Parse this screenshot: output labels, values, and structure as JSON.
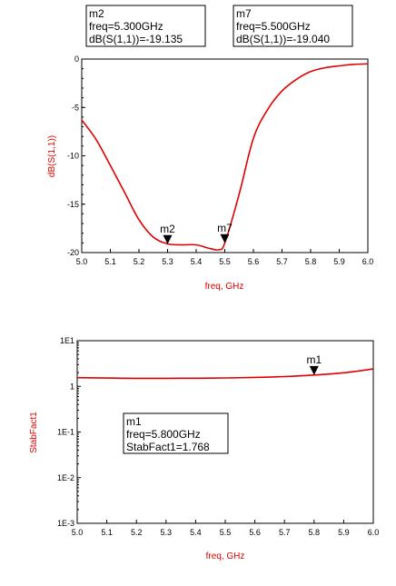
{
  "chart_data": [
    {
      "type": "line",
      "title": "",
      "xlabel": "freq, GHz",
      "ylabel": "dB(S(1,1))",
      "xlim": [
        5.0,
        6.0
      ],
      "ylim": [
        -20,
        0
      ],
      "x_ticks": [
        "5.0",
        "5.1",
        "5.2",
        "5.3",
        "5.4",
        "5.5",
        "5.6",
        "5.7",
        "5.8",
        "5.9",
        "6.0"
      ],
      "y_ticks": [
        "0",
        "-5",
        "-10",
        "-15",
        "-20"
      ],
      "y_tick_values": [
        0,
        -5,
        -10,
        -15,
        -20
      ],
      "grid": false,
      "line_color": "#e00000",
      "series": [
        {
          "x": [
            5.0,
            5.05,
            5.1,
            5.15,
            5.2,
            5.25,
            5.3,
            5.35,
            5.4,
            5.45,
            5.48,
            5.5,
            5.55,
            5.6,
            5.65,
            5.7,
            5.75,
            5.8,
            5.85,
            5.9,
            5.95,
            6.0
          ],
          "y": [
            -6.3,
            -8.3,
            -11.0,
            -13.8,
            -16.6,
            -18.4,
            -19.1,
            -19.2,
            -19.2,
            -19.6,
            -19.7,
            -19.0,
            -14.0,
            -8.2,
            -5.2,
            -3.3,
            -2.1,
            -1.3,
            -0.9,
            -0.7,
            -0.55,
            -0.5
          ]
        }
      ],
      "markers": [
        {
          "name": "m2",
          "x": 5.3,
          "y": -19.135
        },
        {
          "name": "m7",
          "x": 5.5,
          "y": -19.04
        }
      ],
      "readouts": [
        {
          "marker": "m2",
          "line1": "m2",
          "line2": "freq=5.300GHz",
          "line3": "dB(S(1,1))=-19.135"
        },
        {
          "marker": "m7",
          "line1": "m7",
          "line2": "freq=5.500GHz",
          "line3": "dB(S(1,1))=-19.040"
        }
      ]
    },
    {
      "type": "line",
      "title": "",
      "xlabel": "freq, GHz",
      "ylabel": "StabFact1",
      "xlim": [
        5.0,
        6.0
      ],
      "ylim": [
        0.001,
        10
      ],
      "y_scale": "log",
      "x_ticks": [
        "5.0",
        "5.1",
        "5.2",
        "5.3",
        "5.4",
        "5.5",
        "5.6",
        "5.7",
        "5.8",
        "5.9",
        "6.0"
      ],
      "y_ticks": [
        "1E1",
        "1",
        "1E-1",
        "1E-2",
        "1E-3"
      ],
      "y_tick_values": [
        10,
        1,
        0.1,
        0.01,
        0.001
      ],
      "grid": false,
      "line_color": "#e00000",
      "series": [
        {
          "x": [
            5.0,
            5.1,
            5.2,
            5.3,
            5.4,
            5.5,
            5.6,
            5.7,
            5.8,
            5.9,
            6.0
          ],
          "y": [
            1.55,
            1.52,
            1.5,
            1.5,
            1.51,
            1.53,
            1.57,
            1.64,
            1.768,
            1.98,
            2.4
          ]
        }
      ],
      "markers": [
        {
          "name": "m1",
          "x": 5.8,
          "y": 1.768
        }
      ],
      "readouts": [
        {
          "marker": "m1",
          "line1": "m1",
          "line2": "freq=5.800GHz",
          "line3": "StabFact1=1.768"
        }
      ]
    }
  ]
}
